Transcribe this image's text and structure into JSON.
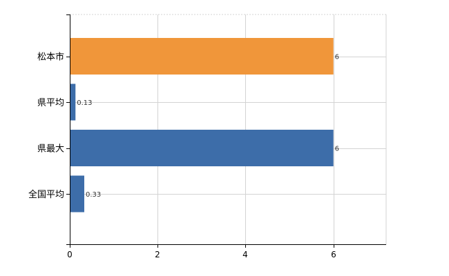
{
  "chart_data": {
    "type": "bar",
    "orientation": "horizontal",
    "categories": [
      "松本市",
      "県平均",
      "県最大",
      "全国平均"
    ],
    "values": [
      6,
      0.13,
      6,
      0.33
    ],
    "value_labels": [
      "6",
      "0.13",
      "6",
      "0.33"
    ],
    "bar_colors": [
      "#F0963A",
      "#3D6DA9",
      "#3D6DA9",
      "#3D6DA9"
    ],
    "xlim": [
      0,
      7.2
    ],
    "x_ticks": [
      0,
      2,
      4,
      6
    ],
    "x_tick_labels": [
      "0",
      "2",
      "4",
      "6"
    ],
    "title": "",
    "xlabel": "",
    "ylabel": "",
    "grid": true,
    "legend": "none"
  }
}
